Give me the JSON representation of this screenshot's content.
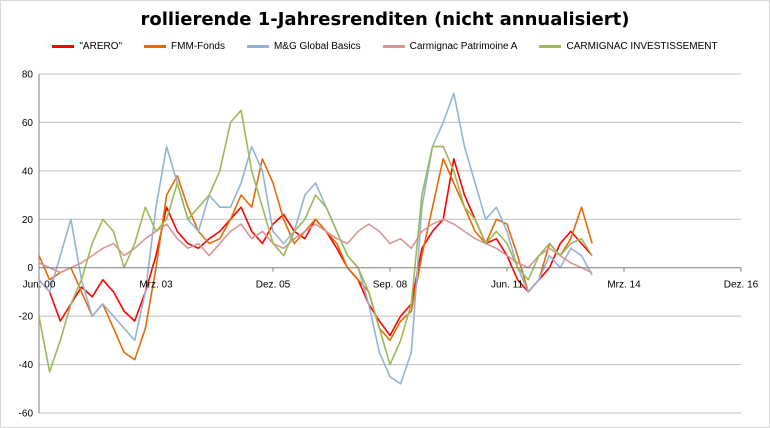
{
  "chart_data": {
    "type": "line",
    "title": "rollierende 1-Jahresrenditen (nicht annualisiert)",
    "xlabel": "",
    "ylabel": "",
    "ylim": [
      -60,
      80
    ],
    "yticks": [
      -60,
      -40,
      -20,
      0,
      20,
      40,
      60,
      80
    ],
    "xlim": [
      "2000-06",
      "2016-12"
    ],
    "x_tick_labels": [
      "Jun. 00",
      "Mrz. 03",
      "Dez. 05",
      "Sep. 08",
      "Jun. 11",
      "Mrz. 14",
      "Dez. 16"
    ],
    "x_tick_dates": [
      "2000-06",
      "2003-03",
      "2005-12",
      "2008-09",
      "2011-06",
      "2014-03",
      "2016-12"
    ],
    "grid": "horizontal",
    "legend_position": "top",
    "series": [
      {
        "name": "\"ARERO\"",
        "color": "#ff0000",
        "x": [
          "2000-06",
          "2000-09",
          "2000-12",
          "2001-03",
          "2001-06",
          "2001-09",
          "2001-12",
          "2002-03",
          "2002-06",
          "2002-09",
          "2002-12",
          "2003-03",
          "2003-06",
          "2003-09",
          "2003-12",
          "2004-03",
          "2004-06",
          "2004-09",
          "2004-12",
          "2005-03",
          "2005-06",
          "2005-09",
          "2005-12",
          "2006-03",
          "2006-06",
          "2006-09",
          "2006-12",
          "2007-03",
          "2007-06",
          "2007-09",
          "2007-12",
          "2008-03",
          "2008-06",
          "2008-09",
          "2008-12",
          "2009-03",
          "2009-06",
          "2009-09",
          "2009-12",
          "2010-03",
          "2010-06",
          "2010-09",
          "2010-12",
          "2011-03",
          "2011-06",
          "2011-09",
          "2011-12",
          "2012-03",
          "2012-06",
          "2012-09",
          "2012-12",
          "2013-03",
          "2013-06"
        ],
        "values": [
          -5,
          -10,
          -22,
          -15,
          -8,
          -12,
          -5,
          -10,
          -18,
          -22,
          -10,
          5,
          25,
          15,
          10,
          8,
          12,
          15,
          20,
          25,
          15,
          10,
          18,
          22,
          15,
          12,
          20,
          15,
          8,
          0,
          -5,
          -15,
          -22,
          -28,
          -20,
          -15,
          8,
          15,
          20,
          45,
          30,
          20,
          10,
          12,
          5,
          -5,
          -10,
          -5,
          0,
          10,
          15,
          10,
          5
        ]
      },
      {
        "name": "FMM-Fonds",
        "color": "#e36c09",
        "x": [
          "2000-06",
          "2000-09",
          "2000-12",
          "2001-03",
          "2001-06",
          "2001-09",
          "2001-12",
          "2002-03",
          "2002-06",
          "2002-09",
          "2002-12",
          "2003-03",
          "2003-06",
          "2003-09",
          "2003-12",
          "2004-03",
          "2004-06",
          "2004-09",
          "2004-12",
          "2005-03",
          "2005-06",
          "2005-09",
          "2005-12",
          "2006-03",
          "2006-06",
          "2006-09",
          "2006-12",
          "2007-03",
          "2007-06",
          "2007-09",
          "2007-12",
          "2008-03",
          "2008-06",
          "2008-09",
          "2008-12",
          "2009-03",
          "2009-06",
          "2009-09",
          "2009-12",
          "2010-03",
          "2010-06",
          "2010-09",
          "2010-12",
          "2011-03",
          "2011-06",
          "2011-09",
          "2011-12",
          "2012-03",
          "2012-06",
          "2012-09",
          "2012-12",
          "2013-03",
          "2013-06"
        ],
        "values": [
          5,
          -5,
          -2,
          0,
          -10,
          -20,
          -15,
          -25,
          -35,
          -38,
          -25,
          0,
          30,
          38,
          25,
          15,
          10,
          12,
          20,
          30,
          25,
          45,
          35,
          20,
          10,
          15,
          20,
          15,
          10,
          0,
          -5,
          -10,
          -25,
          -30,
          -22,
          -18,
          5,
          25,
          45,
          35,
          25,
          15,
          10,
          20,
          18,
          5,
          -10,
          -5,
          10,
          5,
          12,
          25,
          10
        ]
      },
      {
        "name": "M&G Global Basics",
        "color": "#95b3d7",
        "x": [
          "2000-06",
          "2000-09",
          "2000-12",
          "2001-03",
          "2001-06",
          "2001-09",
          "2001-12",
          "2002-03",
          "2002-06",
          "2002-09",
          "2002-12",
          "2003-03",
          "2003-06",
          "2003-09",
          "2003-12",
          "2004-03",
          "2004-06",
          "2004-09",
          "2004-12",
          "2005-03",
          "2005-06",
          "2005-09",
          "2005-12",
          "2006-03",
          "2006-06",
          "2006-09",
          "2006-12",
          "2007-03",
          "2007-06",
          "2007-09",
          "2007-12",
          "2008-03",
          "2008-06",
          "2008-09",
          "2008-12",
          "2009-03",
          "2009-06",
          "2009-09",
          "2009-12",
          "2010-03",
          "2010-06",
          "2010-09",
          "2010-12",
          "2011-03",
          "2011-06",
          "2011-09",
          "2011-12",
          "2012-03",
          "2012-06",
          "2012-09",
          "2012-12",
          "2013-03",
          "2013-06"
        ],
        "values": [
          -5,
          -10,
          5,
          20,
          -5,
          -20,
          -15,
          -20,
          -25,
          -30,
          -10,
          25,
          50,
          35,
          20,
          15,
          30,
          25,
          25,
          35,
          50,
          40,
          15,
          10,
          15,
          30,
          35,
          25,
          15,
          5,
          0,
          -15,
          -35,
          -45,
          -48,
          -35,
          25,
          50,
          60,
          72,
          50,
          35,
          20,
          25,
          15,
          0,
          -10,
          -5,
          5,
          0,
          8,
          5,
          -3
        ]
      },
      {
        "name": "Carmignac Patrimoine A",
        "color": "#d99594",
        "x": [
          "2000-06",
          "2000-09",
          "2000-12",
          "2001-03",
          "2001-06",
          "2001-09",
          "2001-12",
          "2002-03",
          "2002-06",
          "2002-09",
          "2002-12",
          "2003-03",
          "2003-06",
          "2003-09",
          "2003-12",
          "2004-03",
          "2004-06",
          "2004-09",
          "2004-12",
          "2005-03",
          "2005-06",
          "2005-09",
          "2005-12",
          "2006-03",
          "2006-06",
          "2006-09",
          "2006-12",
          "2007-03",
          "2007-06",
          "2007-09",
          "2007-12",
          "2008-03",
          "2008-06",
          "2008-09",
          "2008-12",
          "2009-03",
          "2009-06",
          "2009-09",
          "2009-12",
          "2010-03",
          "2010-06",
          "2010-09",
          "2010-12",
          "2011-03",
          "2011-06",
          "2011-09",
          "2011-12",
          "2012-03",
          "2012-06",
          "2012-09",
          "2012-12",
          "2013-03",
          "2013-06"
        ],
        "values": [
          2,
          0,
          -2,
          0,
          2,
          5,
          8,
          10,
          5,
          8,
          12,
          15,
          18,
          12,
          8,
          10,
          5,
          10,
          15,
          18,
          12,
          15,
          10,
          8,
          12,
          15,
          18,
          15,
          12,
          10,
          15,
          18,
          15,
          10,
          12,
          8,
          15,
          18,
          20,
          18,
          15,
          12,
          10,
          8,
          5,
          2,
          0,
          5,
          8,
          5,
          2,
          0,
          -2
        ]
      },
      {
        "name": "CARMIGNAC INVESTISSEMENT",
        "color": "#9bbb59",
        "x": [
          "2000-06",
          "2000-09",
          "2000-12",
          "2001-03",
          "2001-06",
          "2001-09",
          "2001-12",
          "2002-03",
          "2002-06",
          "2002-09",
          "2002-12",
          "2003-03",
          "2003-06",
          "2003-09",
          "2003-12",
          "2004-03",
          "2004-06",
          "2004-09",
          "2004-12",
          "2005-03",
          "2005-06",
          "2005-09",
          "2005-12",
          "2006-03",
          "2006-06",
          "2006-09",
          "2006-12",
          "2007-03",
          "2007-06",
          "2007-09",
          "2007-12",
          "2008-03",
          "2008-06",
          "2008-09",
          "2008-12",
          "2009-03",
          "2009-06",
          "2009-09",
          "2009-12",
          "2010-03",
          "2010-06",
          "2010-09",
          "2010-12",
          "2011-03",
          "2011-06",
          "2011-09",
          "2011-12",
          "2012-03",
          "2012-06",
          "2012-09",
          "2012-12",
          "2013-03",
          "2013-06"
        ],
        "values": [
          -20,
          -43,
          -30,
          -15,
          -5,
          10,
          20,
          15,
          0,
          10,
          25,
          15,
          20,
          35,
          20,
          25,
          30,
          40,
          60,
          65,
          40,
          25,
          10,
          5,
          15,
          20,
          30,
          25,
          15,
          5,
          0,
          -10,
          -25,
          -40,
          -30,
          -15,
          30,
          50,
          50,
          40,
          25,
          20,
          10,
          15,
          10,
          0,
          -5,
          5,
          10,
          5,
          10,
          12,
          5
        ]
      }
    ]
  }
}
